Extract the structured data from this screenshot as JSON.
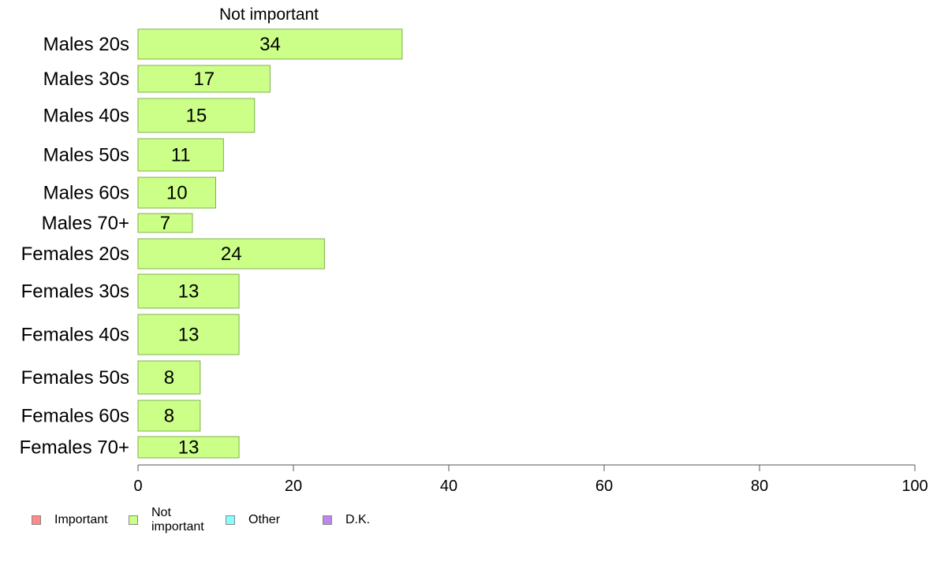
{
  "chart_data": {
    "type": "bar",
    "orientation": "horizontal",
    "title": "Not important",
    "categories": [
      "Males 20s",
      "Males 30s",
      "Males 40s",
      "Males 50s",
      "Males 60s",
      "Males 70+",
      "Females 20s",
      "Females 30s",
      "Females 40s",
      "Females 50s",
      "Females 60s",
      "Females 70+"
    ],
    "values": [
      34,
      17,
      15,
      11,
      10,
      7,
      24,
      13,
      13,
      8,
      8,
      13
    ],
    "xlim": [
      0,
      100
    ],
    "xticks": [
      0,
      20,
      40,
      60,
      80,
      100
    ],
    "grid": false,
    "bar_color": "#ccff88",
    "bar_edge_color": "#7fb04c",
    "legend": {
      "position": "bottom-left",
      "items": [
        {
          "label": "Important",
          "color": "#ff8888"
        },
        {
          "label": "Not important",
          "color": "#ccff88"
        },
        {
          "label": "Other",
          "color": "#88ffff"
        },
        {
          "label": "D.K.",
          "color": "#bb88ee"
        }
      ]
    }
  }
}
